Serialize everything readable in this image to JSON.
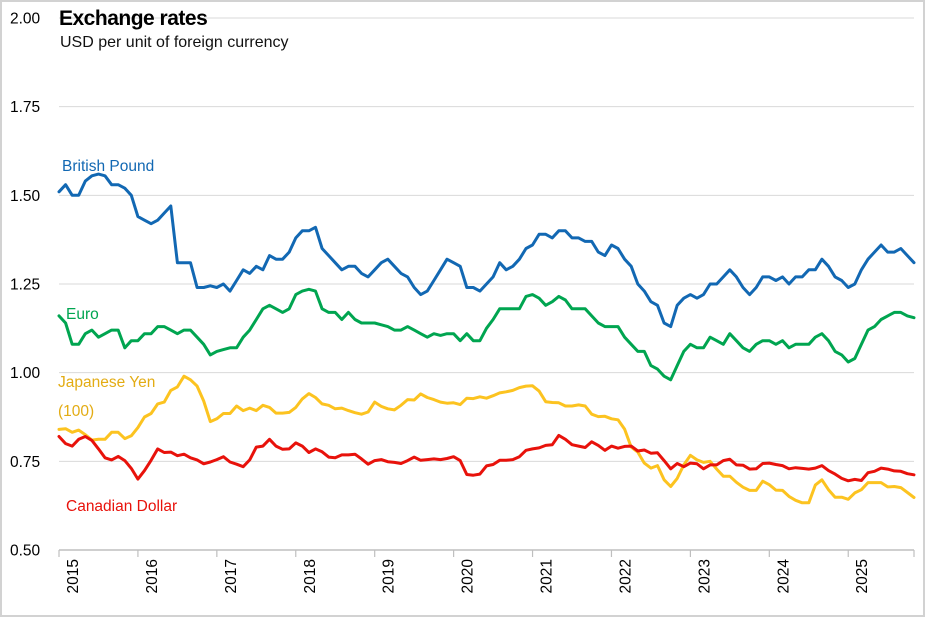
{
  "header": {
    "title": "Exchange rates",
    "subtitle": "USD per unit of foreign currency"
  },
  "colors": {
    "british_pound": "#1268b3",
    "euro": "#00a550",
    "japanese_yen": "#fcc320",
    "canadian_dollar": "#e8120b",
    "gridline": "#d9d9d9",
    "axis": "#bfbfbf",
    "text": "#000000"
  },
  "chart_data": {
    "type": "line",
    "title": "Exchange rates",
    "subtitle": "USD per unit of foreign currency",
    "xlabel": "",
    "ylabel": "USD per unit of foreign currency",
    "grid": true,
    "legend_position": "inline-labels",
    "x_unit": "month",
    "x_start": 2015.0,
    "x_step": 0.0833333,
    "xlim": [
      2015.0,
      2025.8333
    ],
    "ylim": [
      0.5,
      2.0
    ],
    "y_ticks": [
      0.5,
      0.75,
      1.0,
      1.25,
      1.5,
      1.75,
      2.0
    ],
    "y_tick_labels": [
      "0.50",
      "0.75",
      "1.00",
      "1.25",
      "1.50",
      "1.75",
      "2.00"
    ],
    "x_tick_labels": [
      "2015",
      "2016",
      "2017",
      "2018",
      "2019",
      "2020",
      "2021",
      "2022",
      "2023",
      "2024",
      "2025"
    ],
    "series": [
      {
        "name": "British Pound",
        "label_lines": [
          "British Pound"
        ],
        "color": "#1268b3",
        "values": [
          1.51,
          1.53,
          1.5,
          1.5,
          1.54,
          1.555,
          1.56,
          1.555,
          1.53,
          1.53,
          1.52,
          1.5,
          1.44,
          1.43,
          1.42,
          1.43,
          1.45,
          1.47,
          1.31,
          1.31,
          1.31,
          1.24,
          1.24,
          1.245,
          1.24,
          1.25,
          1.23,
          1.26,
          1.29,
          1.28,
          1.3,
          1.29,
          1.33,
          1.32,
          1.32,
          1.34,
          1.38,
          1.4,
          1.4,
          1.41,
          1.35,
          1.33,
          1.31,
          1.29,
          1.3,
          1.3,
          1.28,
          1.27,
          1.29,
          1.31,
          1.32,
          1.3,
          1.28,
          1.27,
          1.24,
          1.22,
          1.23,
          1.26,
          1.29,
          1.32,
          1.31,
          1.3,
          1.24,
          1.24,
          1.23,
          1.25,
          1.27,
          1.31,
          1.29,
          1.3,
          1.32,
          1.35,
          1.36,
          1.39,
          1.39,
          1.38,
          1.4,
          1.4,
          1.38,
          1.38,
          1.37,
          1.37,
          1.34,
          1.33,
          1.36,
          1.35,
          1.32,
          1.3,
          1.25,
          1.23,
          1.2,
          1.19,
          1.14,
          1.13,
          1.19,
          1.21,
          1.22,
          1.21,
          1.22,
          1.25,
          1.25,
          1.27,
          1.29,
          1.27,
          1.24,
          1.22,
          1.24,
          1.27,
          1.27,
          1.26,
          1.27,
          1.25,
          1.27,
          1.27,
          1.29,
          1.29,
          1.32,
          1.3,
          1.27,
          1.26,
          1.24,
          1.25,
          1.29,
          1.32,
          1.34,
          1.36,
          1.34,
          1.34,
          1.35,
          1.33,
          1.31
        ]
      },
      {
        "name": "Euro",
        "label_lines": [
          "Euro"
        ],
        "color": "#00a550",
        "values": [
          1.16,
          1.14,
          1.08,
          1.08,
          1.11,
          1.12,
          1.1,
          1.11,
          1.12,
          1.12,
          1.07,
          1.09,
          1.09,
          1.11,
          1.11,
          1.13,
          1.13,
          1.12,
          1.11,
          1.12,
          1.12,
          1.1,
          1.08,
          1.05,
          1.06,
          1.065,
          1.07,
          1.07,
          1.1,
          1.12,
          1.15,
          1.18,
          1.19,
          1.18,
          1.17,
          1.18,
          1.22,
          1.23,
          1.235,
          1.23,
          1.18,
          1.17,
          1.17,
          1.15,
          1.17,
          1.15,
          1.14,
          1.14,
          1.14,
          1.135,
          1.13,
          1.12,
          1.12,
          1.13,
          1.12,
          1.11,
          1.1,
          1.11,
          1.105,
          1.11,
          1.11,
          1.09,
          1.11,
          1.09,
          1.09,
          1.125,
          1.15,
          1.18,
          1.18,
          1.18,
          1.18,
          1.215,
          1.22,
          1.21,
          1.19,
          1.2,
          1.215,
          1.205,
          1.18,
          1.18,
          1.18,
          1.16,
          1.14,
          1.13,
          1.13,
          1.13,
          1.1,
          1.08,
          1.06,
          1.06,
          1.02,
          1.01,
          0.99,
          0.98,
          1.02,
          1.06,
          1.08,
          1.07,
          1.07,
          1.1,
          1.09,
          1.08,
          1.11,
          1.09,
          1.07,
          1.06,
          1.08,
          1.09,
          1.09,
          1.08,
          1.09,
          1.07,
          1.08,
          1.08,
          1.08,
          1.1,
          1.11,
          1.09,
          1.06,
          1.05,
          1.03,
          1.04,
          1.08,
          1.12,
          1.13,
          1.15,
          1.16,
          1.17,
          1.17,
          1.16,
          1.155
        ]
      },
      {
        "name": "Japanese Yen (100)",
        "label_lines": [
          "Japanese Yen",
          "(100)"
        ],
        "color": "#fcc320",
        "values": [
          0.84,
          0.842,
          0.832,
          0.838,
          0.825,
          0.81,
          0.812,
          0.812,
          0.832,
          0.832,
          0.814,
          0.822,
          0.845,
          0.875,
          0.885,
          0.912,
          0.917,
          0.95,
          0.96,
          0.99,
          0.98,
          0.962,
          0.92,
          0.862,
          0.87,
          0.885,
          0.885,
          0.906,
          0.893,
          0.9,
          0.893,
          0.908,
          0.902,
          0.886,
          0.886,
          0.888,
          0.902,
          0.926,
          0.941,
          0.93,
          0.912,
          0.908,
          0.898,
          0.9,
          0.893,
          0.887,
          0.883,
          0.889,
          0.917,
          0.905,
          0.898,
          0.895,
          0.908,
          0.924,
          0.923,
          0.94,
          0.93,
          0.924,
          0.917,
          0.914,
          0.915,
          0.91,
          0.928,
          0.927,
          0.932,
          0.928,
          0.935,
          0.943,
          0.946,
          0.95,
          0.958,
          0.962,
          0.963,
          0.948,
          0.918,
          0.916,
          0.915,
          0.906,
          0.906,
          0.909,
          0.906,
          0.883,
          0.876,
          0.877,
          0.87,
          0.867,
          0.841,
          0.79,
          0.776,
          0.745,
          0.731,
          0.738,
          0.698,
          0.679,
          0.702,
          0.74,
          0.767,
          0.754,
          0.747,
          0.75,
          0.728,
          0.708,
          0.708,
          0.691,
          0.677,
          0.668,
          0.668,
          0.694,
          0.684,
          0.669,
          0.668,
          0.651,
          0.64,
          0.633,
          0.633,
          0.683,
          0.698,
          0.67,
          0.649,
          0.649,
          0.643,
          0.661,
          0.67,
          0.69,
          0.69,
          0.69,
          0.678,
          0.679,
          0.676,
          0.662,
          0.648
        ]
      },
      {
        "name": "Canadian Dollar",
        "label_lines": [
          "Canadian Dollar"
        ],
        "color": "#e8120b",
        "values": [
          0.82,
          0.8,
          0.793,
          0.812,
          0.82,
          0.809,
          0.785,
          0.76,
          0.754,
          0.764,
          0.752,
          0.73,
          0.7,
          0.724,
          0.753,
          0.785,
          0.775,
          0.776,
          0.766,
          0.77,
          0.76,
          0.754,
          0.743,
          0.748,
          0.755,
          0.763,
          0.748,
          0.742,
          0.735,
          0.754,
          0.79,
          0.793,
          0.812,
          0.793,
          0.784,
          0.785,
          0.802,
          0.793,
          0.775,
          0.785,
          0.777,
          0.762,
          0.76,
          0.768,
          0.768,
          0.77,
          0.757,
          0.742,
          0.752,
          0.755,
          0.749,
          0.747,
          0.744,
          0.752,
          0.762,
          0.753,
          0.755,
          0.757,
          0.755,
          0.758,
          0.763,
          0.752,
          0.713,
          0.711,
          0.714,
          0.737,
          0.741,
          0.753,
          0.753,
          0.755,
          0.763,
          0.781,
          0.785,
          0.788,
          0.795,
          0.797,
          0.823,
          0.812,
          0.797,
          0.793,
          0.789,
          0.805,
          0.795,
          0.781,
          0.793,
          0.787,
          0.792,
          0.793,
          0.779,
          0.782,
          0.773,
          0.774,
          0.752,
          0.729,
          0.744,
          0.735,
          0.745,
          0.743,
          0.729,
          0.74,
          0.74,
          0.752,
          0.756,
          0.74,
          0.739,
          0.728,
          0.729,
          0.744,
          0.745,
          0.741,
          0.738,
          0.729,
          0.732,
          0.73,
          0.728,
          0.731,
          0.738,
          0.724,
          0.714,
          0.702,
          0.695,
          0.699,
          0.696,
          0.718,
          0.722,
          0.731,
          0.728,
          0.723,
          0.722,
          0.715,
          0.712
        ]
      }
    ]
  }
}
